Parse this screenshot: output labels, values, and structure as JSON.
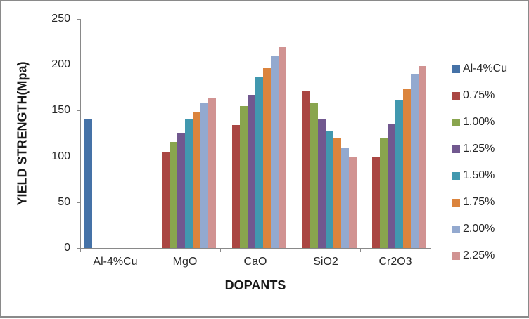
{
  "frame": {
    "border_color": "#8a8a8a",
    "background_color": "#ffffff"
  },
  "chart_data": {
    "type": "bar",
    "title": "",
    "xlabel": "DOPANTS",
    "ylabel": "YIELD STRENGTH(Mpa)",
    "ylim": [
      0,
      250
    ],
    "yticks": [
      0,
      50,
      100,
      150,
      200,
      250
    ],
    "grid": false,
    "legend_position": "right",
    "axis_color": "#898989",
    "text_color": "#262626",
    "categories": [
      "Al-4%Cu",
      "MgO",
      "CaO",
      "SiO2",
      "Cr2O3"
    ],
    "series": [
      {
        "name": "Al-4%Cu",
        "color": "#4572A7",
        "values": [
          140,
          null,
          null,
          null,
          null
        ]
      },
      {
        "name": "0.75%",
        "color": "#AA4643",
        "values": [
          null,
          104,
          134,
          171,
          100
        ]
      },
      {
        "name": "1.00%",
        "color": "#89A54E",
        "values": [
          null,
          116,
          155,
          158,
          120
        ]
      },
      {
        "name": "1.25%",
        "color": "#71588F",
        "values": [
          null,
          126,
          167,
          141,
          135
        ]
      },
      {
        "name": "1.50%",
        "color": "#4198AF",
        "values": [
          null,
          140,
          186,
          128,
          162
        ]
      },
      {
        "name": "1.75%",
        "color": "#DB843D",
        "values": [
          null,
          148,
          196,
          120,
          173
        ]
      },
      {
        "name": "2.00%",
        "color": "#93A9CF",
        "values": [
          null,
          158,
          210,
          110,
          190
        ]
      },
      {
        "name": "2.25%",
        "color": "#D19392",
        "values": [
          null,
          164,
          219,
          100,
          199
        ]
      }
    ]
  }
}
